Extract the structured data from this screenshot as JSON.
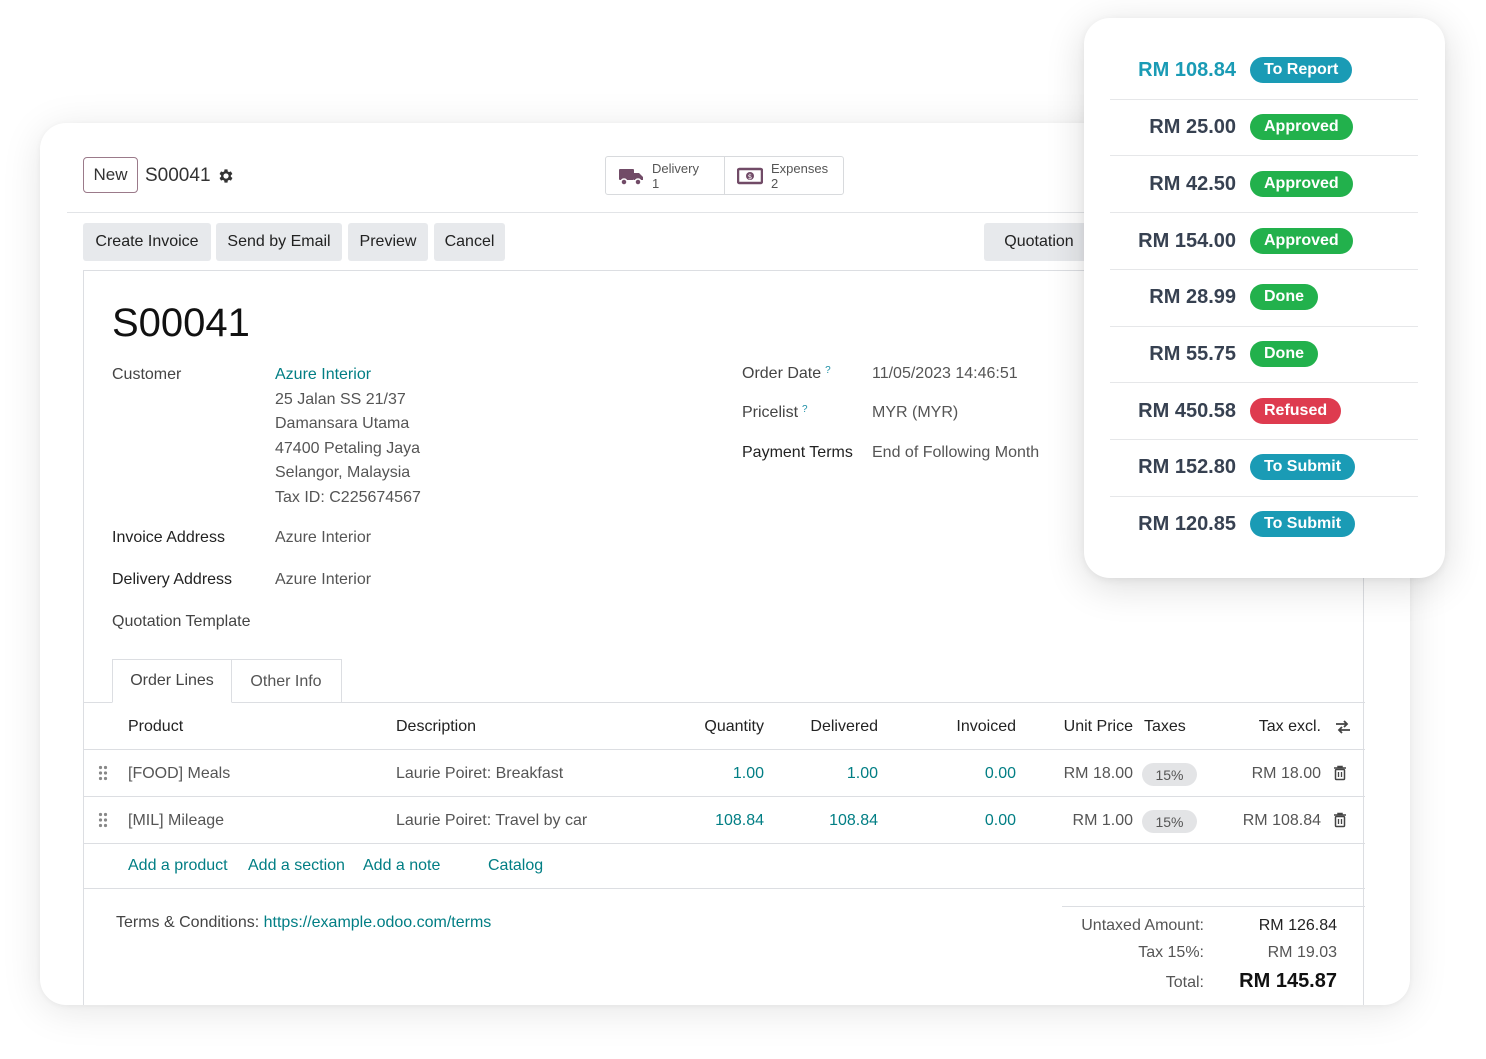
{
  "control_panel": {
    "new_label": "New",
    "breadcrumb": "S00041",
    "smart_buttons": [
      {
        "label": "Delivery",
        "count": "1",
        "icon": "truck-icon"
      },
      {
        "label": "Expenses",
        "count": "2",
        "icon": "money-icon"
      }
    ]
  },
  "actions": {
    "create_invoice": "Create Invoice",
    "send_by_email": "Send by Email",
    "preview": "Preview",
    "cancel": "Cancel",
    "status": "Quotation"
  },
  "sheet": {
    "title": "S00041",
    "customer_label": "Customer",
    "customer_name": "Azure Interior",
    "customer_address": [
      "25 Jalan SS 21/37",
      "Damansara Utama",
      "47400 Petaling Jaya",
      "Selangor, Malaysia",
      "Tax ID: C225674567"
    ],
    "invoice_address_label": "Invoice Address",
    "invoice_address": "Azure Interior",
    "delivery_address_label": "Delivery Address",
    "delivery_address": "Azure Interior",
    "quotation_template_label": "Quotation Template",
    "order_date_label": "Order Date",
    "order_date": "11/05/2023 14:46:51",
    "pricelist_label": "Pricelist",
    "pricelist": "MYR (MYR)",
    "payment_terms_label": "Payment Terms",
    "payment_terms": "End of Following Month",
    "help_mark": "?"
  },
  "tabs": [
    "Order Lines",
    "Other Info"
  ],
  "order_lines": {
    "headers": {
      "product": "Product",
      "description": "Description",
      "quantity": "Quantity",
      "delivered": "Delivered",
      "invoiced": "Invoiced",
      "unit_price": "Unit Price",
      "taxes": "Taxes",
      "tax_excl": "Tax excl."
    },
    "rows": [
      {
        "product": "[FOOD] Meals",
        "description": "Laurie Poiret: Breakfast",
        "quantity": "1.00",
        "delivered": "1.00",
        "invoiced": "0.00",
        "unit_price": "RM 18.00",
        "tax": "15%",
        "subtotal": "RM 18.00"
      },
      {
        "product": "[MIL] Mileage",
        "description": "Laurie Poiret: Travel by car",
        "quantity": "108.84",
        "delivered": "108.84",
        "invoiced": "0.00",
        "unit_price": "RM 1.00",
        "tax": "15%",
        "subtotal": "RM 108.84"
      }
    ],
    "add_links": [
      "Add a product",
      "Add a section",
      "Add a note",
      "Catalog"
    ]
  },
  "footer": {
    "terms_label": "Terms & Conditions:",
    "terms_url": "https://example.odoo.com/terms",
    "untaxed_label": "Untaxed Amount:",
    "untaxed_value": "RM 126.84",
    "tax_label": "Tax 15%:",
    "tax_value": "RM 19.03",
    "total_label": "Total:",
    "total_value": "RM 145.87"
  },
  "expenses_popup": [
    {
      "amount": "RM 108.84",
      "status": "To Report",
      "color": "#1a9bb5",
      "amount_color": "#1a9bb5"
    },
    {
      "amount": "RM 25.00",
      "status": "Approved",
      "color": "#22b14c"
    },
    {
      "amount": "RM 42.50",
      "status": "Approved",
      "color": "#22b14c"
    },
    {
      "amount": "RM 154.00",
      "status": "Approved",
      "color": "#22b14c"
    },
    {
      "amount": "RM 28.99",
      "status": "Done",
      "color": "#22b14c"
    },
    {
      "amount": "RM 55.75",
      "status": "Done",
      "color": "#22b14c"
    },
    {
      "amount": "RM 450.58",
      "status": "Refused",
      "color": "#de3b4f"
    },
    {
      "amount": "RM 152.80",
      "status": "To Submit",
      "color": "#1a9bb5"
    },
    {
      "amount": "RM 120.85",
      "status": "To Submit",
      "color": "#1a9bb5"
    }
  ],
  "colors": {
    "link": "#017e84",
    "brand": "#714b67"
  }
}
